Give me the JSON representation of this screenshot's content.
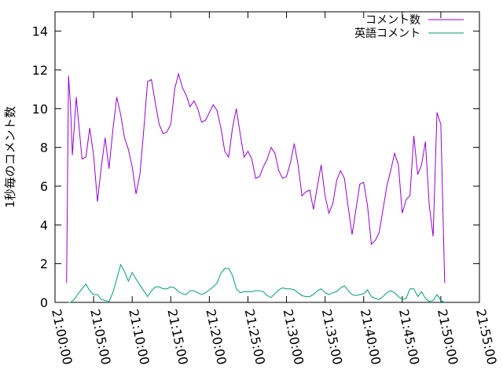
{
  "chart_data": {
    "type": "line",
    "title": "",
    "xlabel": "",
    "ylabel": "1秒毎のコメント数",
    "xlim": [
      "21:00:00",
      "21:55:00"
    ],
    "ylim": [
      0,
      15
    ],
    "yticks": [
      0,
      2,
      4,
      6,
      8,
      10,
      12,
      14
    ],
    "xticks": [
      "21:00:00",
      "21:05:00",
      "21:10:00",
      "21:15:00",
      "21:20:00",
      "21:25:00",
      "21:30:00",
      "21:35:00",
      "21:40:00",
      "21:45:00",
      "21:50:00",
      "21:55:00"
    ],
    "grid": false,
    "legend_position": "top-right",
    "series": [
      {
        "name": "コメント数",
        "color": "#9400d3",
        "points": [
          [
            "21:01:30",
            1.0
          ],
          [
            "21:01:45",
            11.7
          ],
          [
            "21:02:00",
            10.2
          ],
          [
            "21:02:15",
            7.6
          ],
          [
            "21:02:45",
            10.6
          ],
          [
            "21:03:30",
            7.4
          ],
          [
            "21:04:00",
            7.5
          ],
          [
            "21:04:30",
            9.0
          ],
          [
            "21:05:00",
            7.6
          ],
          [
            "21:05:30",
            5.2
          ],
          [
            "21:06:00",
            7.0
          ],
          [
            "21:06:30",
            8.5
          ],
          [
            "21:07:00",
            6.9
          ],
          [
            "21:07:30",
            8.9
          ],
          [
            "21:08:00",
            10.6
          ],
          [
            "21:08:30",
            9.7
          ],
          [
            "21:09:00",
            8.5
          ],
          [
            "21:09:30",
            7.9
          ],
          [
            "21:10:00",
            7.0
          ],
          [
            "21:10:30",
            5.6
          ],
          [
            "21:11:00",
            6.6
          ],
          [
            "21:11:30",
            8.9
          ],
          [
            "21:12:00",
            11.4
          ],
          [
            "21:12:30",
            11.5
          ],
          [
            "21:13:00",
            10.3
          ],
          [
            "21:13:30",
            9.2
          ],
          [
            "21:14:00",
            8.7
          ],
          [
            "21:14:30",
            8.8
          ],
          [
            "21:15:00",
            9.2
          ],
          [
            "21:15:30",
            11.0
          ],
          [
            "21:16:00",
            11.8
          ],
          [
            "21:16:30",
            11.1
          ],
          [
            "21:17:00",
            10.7
          ],
          [
            "21:17:30",
            10.1
          ],
          [
            "21:18:00",
            10.4
          ],
          [
            "21:18:30",
            10.0
          ],
          [
            "21:19:00",
            9.3
          ],
          [
            "21:19:30",
            9.4
          ],
          [
            "21:20:00",
            9.8
          ],
          [
            "21:20:30",
            10.2
          ],
          [
            "21:21:00",
            9.9
          ],
          [
            "21:21:30",
            9.0
          ],
          [
            "21:22:00",
            7.8
          ],
          [
            "21:22:30",
            7.5
          ],
          [
            "21:23:00",
            9.0
          ],
          [
            "21:23:30",
            10.0
          ],
          [
            "21:24:00",
            8.7
          ],
          [
            "21:24:30",
            7.5
          ],
          [
            "21:25:00",
            7.8
          ],
          [
            "21:25:30",
            7.4
          ],
          [
            "21:26:00",
            6.4
          ],
          [
            "21:26:30",
            6.5
          ],
          [
            "21:27:00",
            7.0
          ],
          [
            "21:27:30",
            7.4
          ],
          [
            "21:28:00",
            8.0
          ],
          [
            "21:28:30",
            7.7
          ],
          [
            "21:29:00",
            6.8
          ],
          [
            "21:29:30",
            6.4
          ],
          [
            "21:30:00",
            6.5
          ],
          [
            "21:30:30",
            7.2
          ],
          [
            "21:31:00",
            8.2
          ],
          [
            "21:31:30",
            7.1
          ],
          [
            "21:32:00",
            5.5
          ],
          [
            "21:32:30",
            5.7
          ],
          [
            "21:33:00",
            5.8
          ],
          [
            "21:33:30",
            4.8
          ],
          [
            "21:34:00",
            6.0
          ],
          [
            "21:34:30",
            7.1
          ],
          [
            "21:35:00",
            5.5
          ],
          [
            "21:35:30",
            4.6
          ],
          [
            "21:36:00",
            5.1
          ],
          [
            "21:36:30",
            6.3
          ],
          [
            "21:37:00",
            6.8
          ],
          [
            "21:37:30",
            6.4
          ],
          [
            "21:38:00",
            4.9
          ],
          [
            "21:38:30",
            3.5
          ],
          [
            "21:39:00",
            4.8
          ],
          [
            "21:39:30",
            6.1
          ],
          [
            "21:40:00",
            6.2
          ],
          [
            "21:40:30",
            5.0
          ],
          [
            "21:41:00",
            3.0
          ],
          [
            "21:41:30",
            3.2
          ],
          [
            "21:42:00",
            3.6
          ],
          [
            "21:42:30",
            4.8
          ],
          [
            "21:43:00",
            6.0
          ],
          [
            "21:43:30",
            6.8
          ],
          [
            "21:44:00",
            7.7
          ],
          [
            "21:44:30",
            7.1
          ],
          [
            "21:45:00",
            4.6
          ],
          [
            "21:45:30",
            5.3
          ],
          [
            "21:46:00",
            5.5
          ],
          [
            "21:46:30",
            8.6
          ],
          [
            "21:47:00",
            6.6
          ],
          [
            "21:47:30",
            7.1
          ],
          [
            "21:48:00",
            8.3
          ],
          [
            "21:48:30",
            5.0
          ],
          [
            "21:49:00",
            3.4
          ],
          [
            "21:49:30",
            9.8
          ],
          [
            "21:50:00",
            9.2
          ],
          [
            "21:50:30",
            1.0
          ]
        ]
      },
      {
        "name": "英語コメント",
        "color": "#009e73",
        "points": [
          [
            "21:01:45",
            0.0
          ],
          [
            "21:02:00",
            0.0
          ],
          [
            "21:02:30",
            0.15
          ],
          [
            "21:03:00",
            0.45
          ],
          [
            "21:03:30",
            0.7
          ],
          [
            "21:04:00",
            0.95
          ],
          [
            "21:04:30",
            0.6
          ],
          [
            "21:05:00",
            0.4
          ],
          [
            "21:05:30",
            0.4
          ],
          [
            "21:06:00",
            0.15
          ],
          [
            "21:06:30",
            0.1
          ],
          [
            "21:07:00",
            0.05
          ],
          [
            "21:07:30",
            0.5
          ],
          [
            "21:08:00",
            1.2
          ],
          [
            "21:08:30",
            1.95
          ],
          [
            "21:09:00",
            1.6
          ],
          [
            "21:09:30",
            1.1
          ],
          [
            "21:10:00",
            1.55
          ],
          [
            "21:10:30",
            1.2
          ],
          [
            "21:11:00",
            0.9
          ],
          [
            "21:11:30",
            0.6
          ],
          [
            "21:12:00",
            0.3
          ],
          [
            "21:12:30",
            0.6
          ],
          [
            "21:13:00",
            0.8
          ],
          [
            "21:13:30",
            0.8
          ],
          [
            "21:14:00",
            0.7
          ],
          [
            "21:14:30",
            0.7
          ],
          [
            "21:15:00",
            0.8
          ],
          [
            "21:15:30",
            0.75
          ],
          [
            "21:16:00",
            0.55
          ],
          [
            "21:16:30",
            0.45
          ],
          [
            "21:17:00",
            0.4
          ],
          [
            "21:17:30",
            0.6
          ],
          [
            "21:18:00",
            0.6
          ],
          [
            "21:18:30",
            0.5
          ],
          [
            "21:19:00",
            0.4
          ],
          [
            "21:19:30",
            0.5
          ],
          [
            "21:20:00",
            0.65
          ],
          [
            "21:20:30",
            0.8
          ],
          [
            "21:21:00",
            1.0
          ],
          [
            "21:21:30",
            1.5
          ],
          [
            "21:22:00",
            1.75
          ],
          [
            "21:22:30",
            1.75
          ],
          [
            "21:23:00",
            1.4
          ],
          [
            "21:23:30",
            0.7
          ],
          [
            "21:24:00",
            0.5
          ],
          [
            "21:24:30",
            0.55
          ],
          [
            "21:25:00",
            0.55
          ],
          [
            "21:25:30",
            0.55
          ],
          [
            "21:26:00",
            0.6
          ],
          [
            "21:26:30",
            0.6
          ],
          [
            "21:27:00",
            0.55
          ],
          [
            "21:27:30",
            0.35
          ],
          [
            "21:28:00",
            0.25
          ],
          [
            "21:28:30",
            0.45
          ],
          [
            "21:29:00",
            0.65
          ],
          [
            "21:29:30",
            0.75
          ],
          [
            "21:30:00",
            0.7
          ],
          [
            "21:30:30",
            0.7
          ],
          [
            "21:31:00",
            0.65
          ],
          [
            "21:31:30",
            0.5
          ],
          [
            "21:32:00",
            0.35
          ],
          [
            "21:32:30",
            0.3
          ],
          [
            "21:33:00",
            0.3
          ],
          [
            "21:33:30",
            0.4
          ],
          [
            "21:34:00",
            0.6
          ],
          [
            "21:34:30",
            0.7
          ],
          [
            "21:35:00",
            0.5
          ],
          [
            "21:35:30",
            0.4
          ],
          [
            "21:36:00",
            0.5
          ],
          [
            "21:36:30",
            0.55
          ],
          [
            "21:37:00",
            0.75
          ],
          [
            "21:37:30",
            0.85
          ],
          [
            "21:38:00",
            0.6
          ],
          [
            "21:38:30",
            0.4
          ],
          [
            "21:39:00",
            0.35
          ],
          [
            "21:39:30",
            0.4
          ],
          [
            "21:40:00",
            0.45
          ],
          [
            "21:40:30",
            0.65
          ],
          [
            "21:41:00",
            0.3
          ],
          [
            "21:41:30",
            0.2
          ],
          [
            "21:42:00",
            0.15
          ],
          [
            "21:42:30",
            0.3
          ],
          [
            "21:43:00",
            0.5
          ],
          [
            "21:43:30",
            0.6
          ],
          [
            "21:44:00",
            0.5
          ],
          [
            "21:44:30",
            0.3
          ],
          [
            "21:45:00",
            0.15
          ],
          [
            "21:45:30",
            0.2
          ],
          [
            "21:46:00",
            0.7
          ],
          [
            "21:46:30",
            0.7
          ],
          [
            "21:47:00",
            0.3
          ],
          [
            "21:47:30",
            0.55
          ],
          [
            "21:48:00",
            0.2
          ],
          [
            "21:48:30",
            0.05
          ],
          [
            "21:49:00",
            0.1
          ],
          [
            "21:49:30",
            0.4
          ],
          [
            "21:50:00",
            0.1
          ],
          [
            "21:50:30",
            0.0
          ]
        ]
      }
    ]
  }
}
